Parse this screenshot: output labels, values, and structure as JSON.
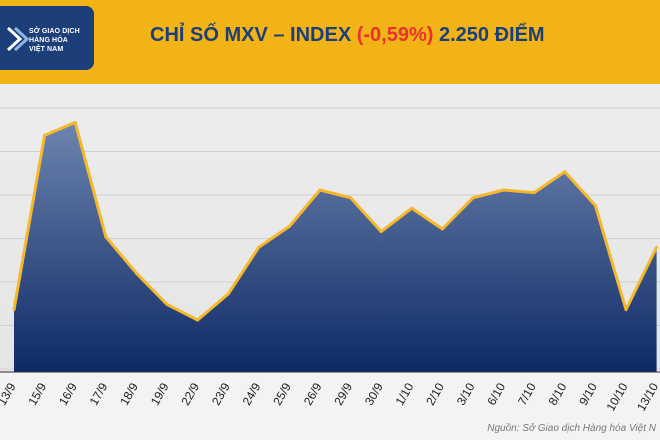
{
  "header": {
    "logo_lines": [
      "SỞ GIAO DỊCH",
      "HÀNG HÓA",
      "VIỆT NAM"
    ],
    "title_prefix": "CHỈ SỐ MXV – INDEX ",
    "title_change": "(-0,59%)",
    "title_suffix": " 2.250 ĐIỂM"
  },
  "source": "Nguồn: Sở Giao dịch Hàng hóa Việt N",
  "colors": {
    "header": "#f2b316",
    "logo_bg": "#1c3f7a",
    "title": "#1c3f7a",
    "title_change": "#e8322b",
    "line": "#f5b82a",
    "area_top": "#6d84ae",
    "area_bottom": "#0e2a66"
  },
  "chart_data": {
    "type": "area",
    "categories": [
      "13/9",
      "15/9",
      "16/9",
      "17/9",
      "18/9",
      "19/9",
      "22/9",
      "23/9",
      "24/9",
      "25/9",
      "26/9",
      "29/9",
      "30/9",
      "1/10",
      "2/10",
      "3/10",
      "6/10",
      "7/10",
      "8/10",
      "9/10",
      "10/10",
      "13/10"
    ],
    "values": [
      0.24,
      0.91,
      0.96,
      0.52,
      0.38,
      0.26,
      0.2,
      0.3,
      0.48,
      0.56,
      0.7,
      0.67,
      0.54,
      0.63,
      0.55,
      0.67,
      0.7,
      0.69,
      0.77,
      0.64,
      0.24,
      0.48
    ],
    "ylim": [
      0,
      1
    ],
    "grid": true,
    "legend": "none",
    "yticks_shown": false
  }
}
